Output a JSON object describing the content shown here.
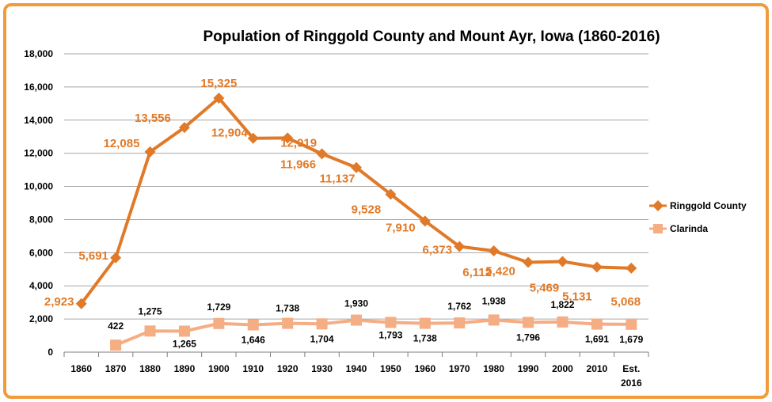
{
  "chart_data": {
    "type": "line",
    "title": "Population of Ringgold County and Mount Ayr, Iowa (1860-2016)",
    "xlabel": "",
    "ylabel": "",
    "categories": [
      "1860",
      "1870",
      "1880",
      "1890",
      "1900",
      "1910",
      "1920",
      "1930",
      "1940",
      "1950",
      "1960",
      "1970",
      "1980",
      "1990",
      "2000",
      "2010",
      "Est. 2016"
    ],
    "ylim": [
      0,
      18000
    ],
    "yticks": [
      "0",
      "2,000",
      "4,000",
      "6,000",
      "8,000",
      "10,000",
      "12,000",
      "14,000",
      "16,000",
      "18,000"
    ],
    "grid": true,
    "legend_position": "right",
    "series": [
      {
        "name": "Ringgold County",
        "color": "#e07a28",
        "marker": "diamond",
        "values": [
          2923,
          5691,
          12085,
          13556,
          15325,
          12904,
          12919,
          11966,
          11137,
          9528,
          7910,
          6373,
          6112,
          5420,
          5469,
          5131,
          5068
        ],
        "labels": [
          "2,923",
          "5,691",
          "12,085",
          "13,556",
          "15,325",
          "12,904",
          "12,919",
          "11,966",
          "11,137",
          "9,528",
          "7,910",
          "6,373",
          "6,112",
          "5,420",
          "5,469",
          "5,131",
          "5,068"
        ]
      },
      {
        "name": "Clarinda",
        "color": "#f5ad84",
        "marker": "square",
        "values": [
          null,
          422,
          1275,
          1265,
          1729,
          1646,
          1738,
          1704,
          1930,
          1793,
          1738,
          1762,
          1938,
          1796,
          1822,
          1691,
          1679
        ],
        "labels": [
          "",
          "422",
          "1,275",
          "1,265",
          "1,729",
          "1,646",
          "1,738",
          "1,704",
          "1,930",
          "1,793",
          "1,738",
          "1,762",
          "1,938",
          "1,796",
          "1,822",
          "1,691",
          "1,679"
        ]
      }
    ]
  }
}
